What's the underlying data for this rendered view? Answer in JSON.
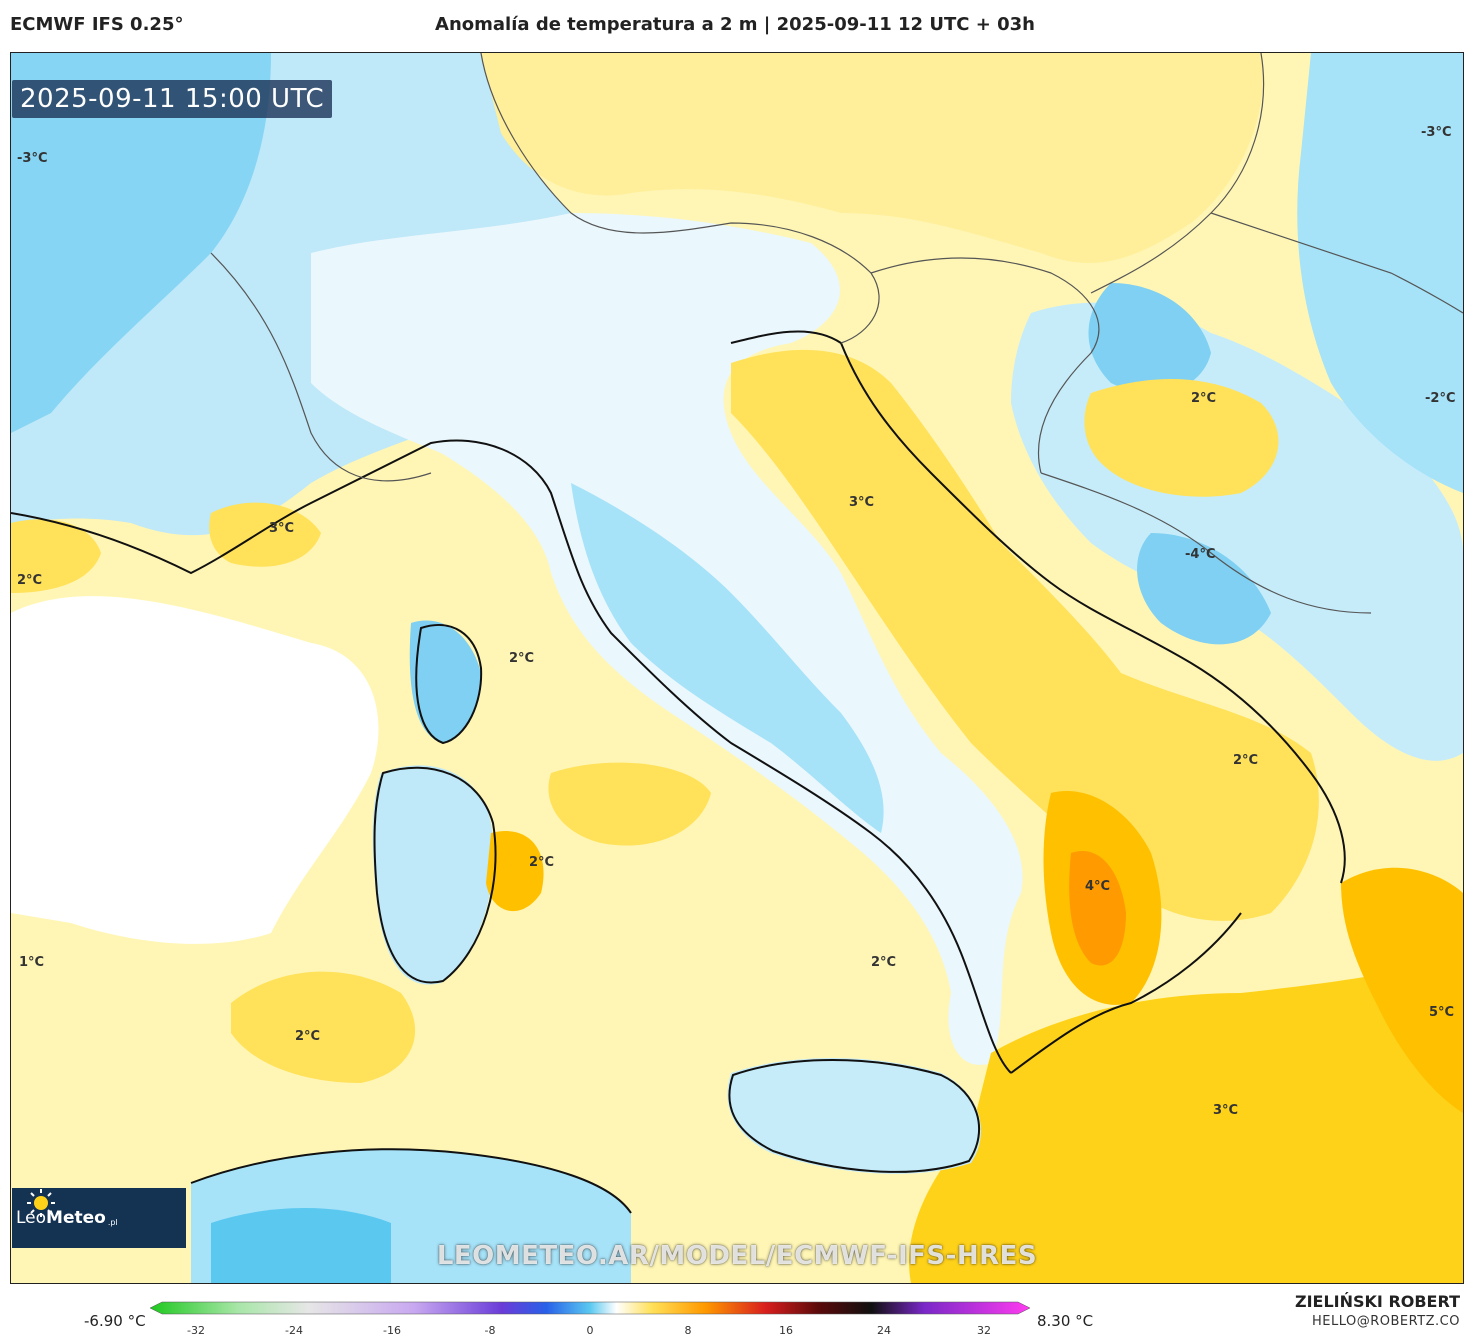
{
  "header": {
    "model": "ECMWF IFS 0.25°",
    "title": "Anomalía de temperatura a 2 m | 2025-09-11 12 UTC + 03h"
  },
  "map": {
    "valid_time": "2025-09-11 15:00 UTC",
    "labels": [
      {
        "text": "-3°C",
        "region": "west-alps"
      },
      {
        "text": "-3°C",
        "region": "east-edge"
      },
      {
        "text": "3°C",
        "region": "liguria-coast"
      },
      {
        "text": "2°C",
        "region": "gulf-of-lion"
      },
      {
        "text": "3°C",
        "region": "adriatic"
      },
      {
        "text": "2°C",
        "region": "hungary"
      },
      {
        "text": "-2°C",
        "region": "east-edge-mid"
      },
      {
        "text": "-4°C",
        "region": "bosnia"
      },
      {
        "text": "2°C",
        "region": "corsica-east"
      },
      {
        "text": "2°C",
        "region": "sardinia-east"
      },
      {
        "text": "2°C",
        "region": "ionian-north"
      },
      {
        "text": "4°C",
        "region": "basilicata"
      },
      {
        "text": "1°C",
        "region": "balearic"
      },
      {
        "text": "2°C",
        "region": "tyrrhenian"
      },
      {
        "text": "2°C",
        "region": "algeria-sea"
      },
      {
        "text": "5°C",
        "region": "greece"
      },
      {
        "text": "3°C",
        "region": "ionian-south"
      }
    ],
    "brand": {
      "name_light": "Leo",
      "name_bold": "Meteo",
      "suffix": ".pl"
    },
    "watermark": "LEOMETEO.AR/MODEL/ECMWF-IFS-HRES",
    "fill_colors": {
      "warm_light": "#fff6b5",
      "warm_mid": "#ffe15a",
      "warm_strong": "#ffc000",
      "warm_hot": "#ff9a00",
      "neutral": "#ffffff",
      "cool_light": "#d6f0fb",
      "cool_mid": "#a6e2f8",
      "cool_strong": "#5bc8f0"
    }
  },
  "colorbar": {
    "min_label": "-6.90 °C",
    "max_label": "8.30 °C",
    "ticks": [
      "-32",
      "-24",
      "-16",
      "-8",
      "0",
      "8",
      "16",
      "24",
      "32"
    ]
  },
  "credit": {
    "author": "ZIELIŃSKI ROBERT",
    "email": "HELLO@ROBERTZ.CO"
  }
}
